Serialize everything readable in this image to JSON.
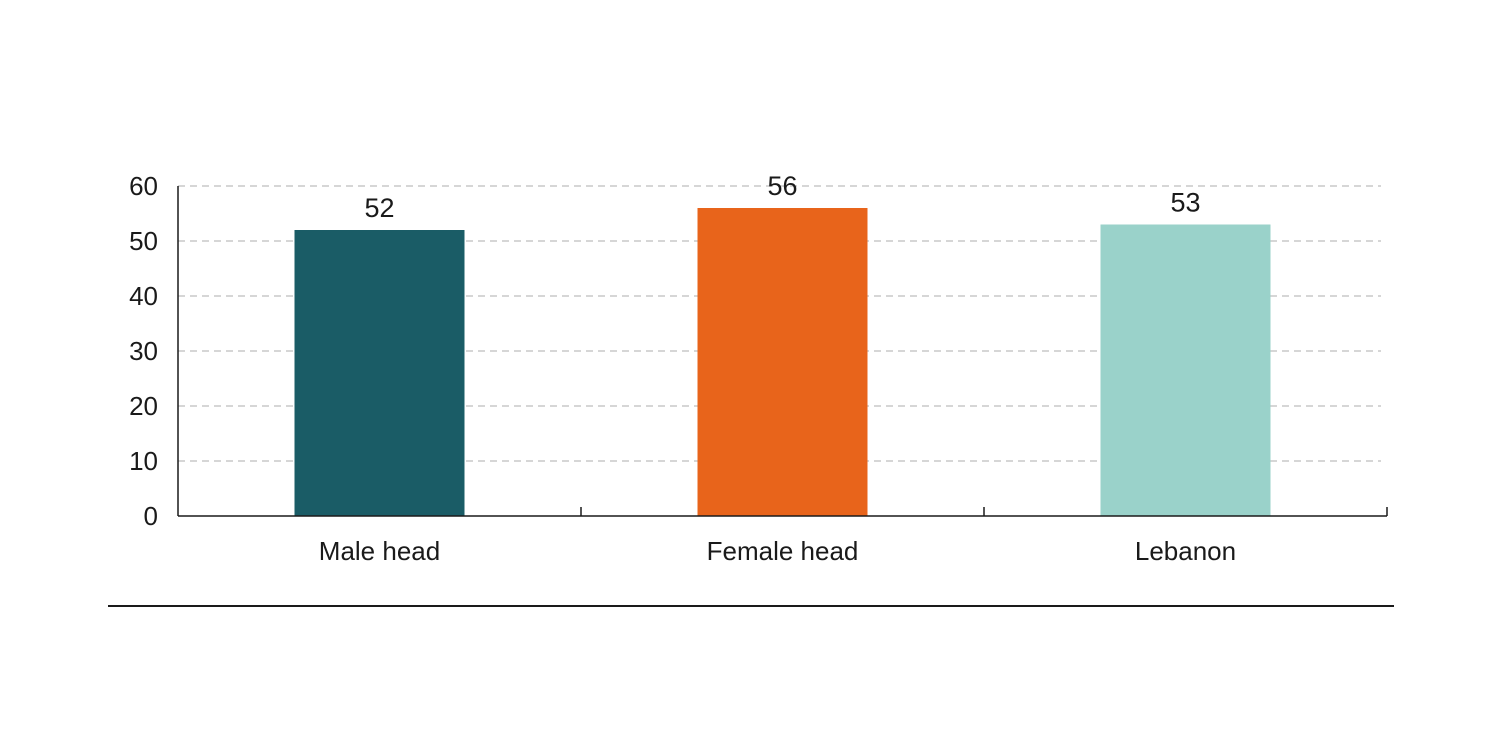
{
  "chart_data": {
    "type": "bar",
    "categories": [
      "Male head",
      "Female head",
      "Lebanon"
    ],
    "values": [
      52,
      56,
      53
    ],
    "data_labels": [
      "52",
      "56",
      "53"
    ],
    "colors": [
      "#1a5c66",
      "#e8641b",
      "#9ad2ca"
    ],
    "ylim": [
      0,
      60
    ],
    "yticks": [
      0,
      10,
      20,
      30,
      40,
      50,
      60
    ],
    "title": "",
    "xlabel": "",
    "ylabel": "",
    "grid": true,
    "grid_style": "dashed",
    "legend": false
  }
}
